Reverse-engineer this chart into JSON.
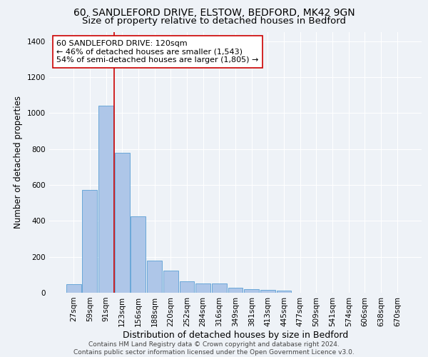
{
  "title_line1": "60, SANDLEFORD DRIVE, ELSTOW, BEDFORD, MK42 9GN",
  "title_line2": "Size of property relative to detached houses in Bedford",
  "xlabel": "Distribution of detached houses by size in Bedford",
  "ylabel": "Number of detached properties",
  "bar_labels": [
    "27sqm",
    "59sqm",
    "91sqm",
    "123sqm",
    "156sqm",
    "188sqm",
    "220sqm",
    "252sqm",
    "284sqm",
    "316sqm",
    "349sqm",
    "381sqm",
    "413sqm",
    "445sqm",
    "477sqm",
    "509sqm",
    "541sqm",
    "574sqm",
    "606sqm",
    "638sqm",
    "670sqm"
  ],
  "bar_values": [
    48,
    573,
    1040,
    780,
    425,
    180,
    125,
    63,
    50,
    50,
    27,
    20,
    15,
    10,
    0,
    0,
    0,
    0,
    0,
    0,
    0
  ],
  "bar_color": "#aec6e8",
  "bar_edge_color": "#5a9fd4",
  "vline_color": "#cc0000",
  "annotation_text": "60 SANDLEFORD DRIVE: 120sqm\n← 46% of detached houses are smaller (1,543)\n54% of semi-detached houses are larger (1,805) →",
  "annotation_box_color": "#ffffff",
  "annotation_box_edgecolor": "#cc0000",
  "ylim": [
    0,
    1450
  ],
  "yticks": [
    0,
    200,
    400,
    600,
    800,
    1000,
    1200,
    1400
  ],
  "background_color": "#eef2f7",
  "grid_color": "#ffffff",
  "footer_text": "Contains HM Land Registry data © Crown copyright and database right 2024.\nContains public sector information licensed under the Open Government Licence v3.0.",
  "title_fontsize": 10,
  "subtitle_fontsize": 9.5,
  "xlabel_fontsize": 9,
  "ylabel_fontsize": 8.5,
  "tick_fontsize": 7.5,
  "annotation_fontsize": 8,
  "footer_fontsize": 6.5
}
